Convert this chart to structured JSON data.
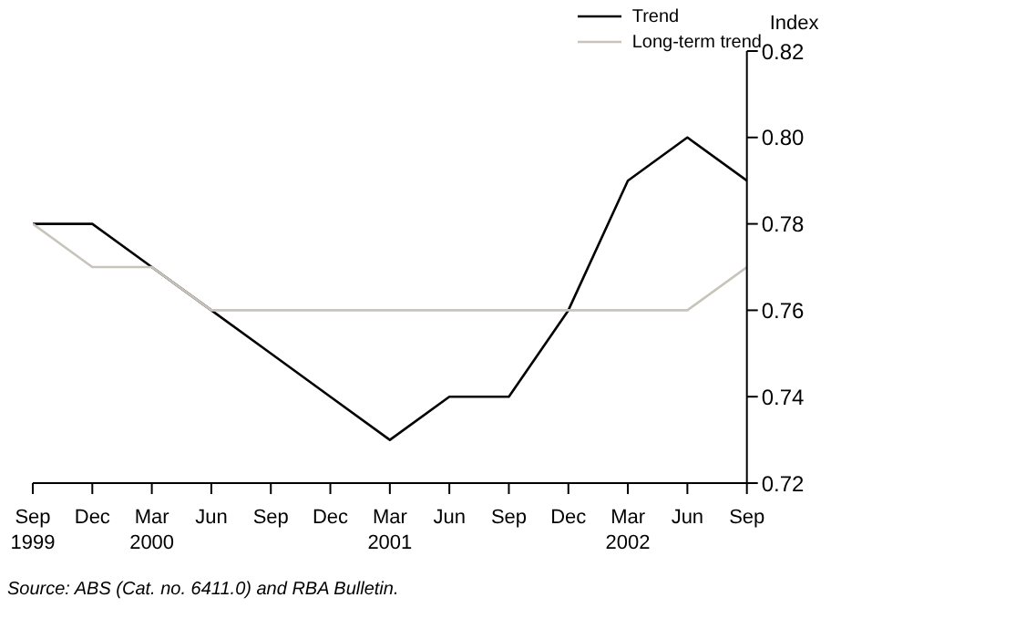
{
  "chart_data": {
    "type": "line",
    "categories": [
      "Sep\n1999",
      "Dec",
      "Mar\n2000",
      "Jun",
      "Sep",
      "Dec",
      "Mar\n2001",
      "Jun",
      "Sep",
      "Dec",
      "Mar\n2002",
      "Jun",
      "Sep"
    ],
    "series": [
      {
        "name": "Trend",
        "color": "#000000",
        "values": [
          0.78,
          0.78,
          0.77,
          0.76,
          0.75,
          0.74,
          0.73,
          0.74,
          0.74,
          0.76,
          0.79,
          0.8,
          0.79
        ]
      },
      {
        "name": "Long-term trend",
        "color": "#c8c4bc",
        "values": [
          0.78,
          0.77,
          0.77,
          0.76,
          0.76,
          0.76,
          0.76,
          0.76,
          0.76,
          0.76,
          0.76,
          0.76,
          0.77
        ]
      }
    ],
    "ylabel": "Index",
    "ylim": [
      0.72,
      0.82
    ],
    "yticks": [
      0.72,
      0.74,
      0.76,
      0.78,
      {
        "value": 0.8,
        "label": "0.80"
      },
      0.82
    ],
    "grid": false,
    "legend": "top right",
    "marker": "none",
    "line_style": "solid",
    "annotations": [
      "Source: ABS (Cat. no. 6411.0) and RBA Bulletin."
    ]
  }
}
